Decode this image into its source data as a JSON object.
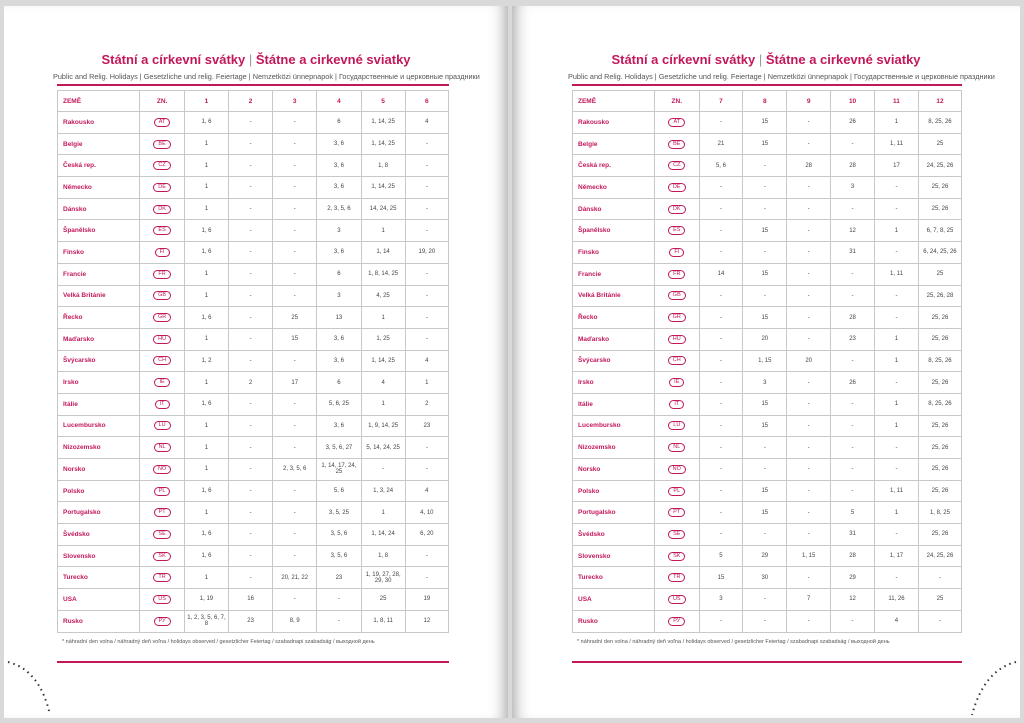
{
  "pages": [
    {
      "title": [
        "Státní a církevní svátky",
        "Štátne a cirkevné sviatky"
      ],
      "subtitle": "Public and Relig. Holidays | Gesetzliche und relig. Feiertage | Nemzetközi ünnepnapok | Государственные и церковные праздники",
      "header": [
        "ZEMĚ",
        "ZN.",
        "1",
        "2",
        "3",
        "4",
        "5",
        "6"
      ],
      "rows": [
        [
          "Rakousko",
          "AT",
          "1, 6",
          "-",
          "-",
          "6",
          "1, 14, 25",
          "4"
        ],
        [
          "Belgie",
          "BE",
          "1",
          "-",
          "-",
          "3, 6",
          "1, 14, 25",
          "-"
        ],
        [
          "Česká rep.",
          "CZ",
          "1",
          "-",
          "-",
          "3, 6",
          "1, 8",
          "-"
        ],
        [
          "Německo",
          "DE",
          "1",
          "-",
          "-",
          "3, 6",
          "1, 14, 25",
          "-"
        ],
        [
          "Dánsko",
          "DK",
          "1",
          "-",
          "-",
          "2, 3, 5, 6",
          "14, 24, 25",
          "-"
        ],
        [
          "Španělsko",
          "ES",
          "1, 6",
          "-",
          "-",
          "3",
          "1",
          "-"
        ],
        [
          "Finsko",
          "FI",
          "1, 6",
          "-",
          "-",
          "3, 6",
          "1, 14",
          "19, 20"
        ],
        [
          "Francie",
          "FR",
          "1",
          "-",
          "-",
          "6",
          "1, 8, 14, 25",
          "-"
        ],
        [
          "Velká Británie",
          "GB",
          "1",
          "-",
          "-",
          "3",
          "4, 25",
          "-"
        ],
        [
          "Řecko",
          "GR",
          "1, 6",
          "-",
          "25",
          "13",
          "1",
          "-"
        ],
        [
          "Maďarsko",
          "HU",
          "1",
          "-",
          "15",
          "3, 6",
          "1, 25",
          "-"
        ],
        [
          "Švýcarsko",
          "CH",
          "1, 2",
          "-",
          "-",
          "3, 6",
          "1, 14, 25",
          "4"
        ],
        [
          "Irsko",
          "IE",
          "1",
          "2",
          "17",
          "6",
          "4",
          "1"
        ],
        [
          "Itálie",
          "IT",
          "1, 6",
          "-",
          "-",
          "5, 6, 25",
          "1",
          "2"
        ],
        [
          "Lucembursko",
          "LU",
          "1",
          "-",
          "-",
          "3, 6",
          "1, 9, 14, 25",
          "23"
        ],
        [
          "Nizozemsko",
          "NL",
          "1",
          "-",
          "-",
          "3, 5, 6, 27",
          "5, 14, 24, 25",
          "-"
        ],
        [
          "Norsko",
          "NO",
          "1",
          "-",
          "2, 3, 5, 6",
          "1, 14, 17, 24, 25",
          "-",
          "-"
        ],
        [
          "Polsko",
          "PL",
          "1, 6",
          "-",
          "-",
          "5, 6",
          "1, 3, 24",
          "4"
        ],
        [
          "Portugalsko",
          "PT",
          "1",
          "-",
          "-",
          "3, 5, 25",
          "1",
          "4, 10"
        ],
        [
          "Švédsko",
          "SE",
          "1, 6",
          "-",
          "-",
          "3, 5, 6",
          "1, 14, 24",
          "6, 20"
        ],
        [
          "Slovensko",
          "SK",
          "1, 6",
          "-",
          "-",
          "3, 5, 6",
          "1, 8",
          "-"
        ],
        [
          "Turecko",
          "TR",
          "1",
          "-",
          "20, 21, 22",
          "23",
          "1, 19, 27, 28, 29, 30",
          "-"
        ],
        [
          "USA",
          "US",
          "1, 19",
          "16",
          "-",
          "-",
          "25",
          "19"
        ],
        [
          "Rusko",
          "РУ",
          "1, 2, 3, 5, 6, 7, 8",
          "23",
          "8, 9",
          "-",
          "1, 8, 11",
          "12"
        ]
      ],
      "footnote": "* náhradní den volna / náhradný deň voľna / holidays observed / gesetzlicher Feiertag / szabadnapi szabadság / выходной день"
    },
    {
      "title": [
        "Státní a církevní svátky",
        "Štátne a cirkevné sviatky"
      ],
      "subtitle": "Public and Relig. Holidays | Gesetzliche und relig. Feiertage | Nemzetközi ünnepnapok | Государственные и церковные праздники",
      "header": [
        "ZEMĚ",
        "ZN.",
        "7",
        "8",
        "9",
        "10",
        "11",
        "12"
      ],
      "rows": [
        [
          "Rakousko",
          "AT",
          "-",
          "15",
          "-",
          "26",
          "1",
          "8, 25, 26"
        ],
        [
          "Belgie",
          "BE",
          "21",
          "15",
          "-",
          "-",
          "1, 11",
          "25"
        ],
        [
          "Česká rep.",
          "CZ",
          "5, 6",
          "-",
          "28",
          "28",
          "17",
          "24, 25, 26"
        ],
        [
          "Německo",
          "DE",
          "-",
          "-",
          "-",
          "3",
          "-",
          "25, 26"
        ],
        [
          "Dánsko",
          "DK",
          "-",
          "-",
          "-",
          "-",
          "-",
          "25, 26"
        ],
        [
          "Španělsko",
          "ES",
          "-",
          "15",
          "-",
          "12",
          "1",
          "6, 7, 8, 25"
        ],
        [
          "Finsko",
          "FI",
          "-",
          "-",
          "-",
          "31",
          "-",
          "6, 24, 25, 26"
        ],
        [
          "Francie",
          "FR",
          "14",
          "15",
          "-",
          "-",
          "1, 11",
          "25"
        ],
        [
          "Velká Británie",
          "GB",
          "-",
          "-",
          "-",
          "-",
          "-",
          "25, 26, 28"
        ],
        [
          "Řecko",
          "GR",
          "-",
          "15",
          "-",
          "28",
          "-",
          "25, 26"
        ],
        [
          "Maďarsko",
          "HU",
          "-",
          "20",
          "-",
          "23",
          "1",
          "25, 26"
        ],
        [
          "Švýcarsko",
          "CH",
          "-",
          "1, 15",
          "20",
          "-",
          "1",
          "8, 25, 26"
        ],
        [
          "Irsko",
          "IE",
          "-",
          "3",
          "-",
          "26",
          "-",
          "25, 26"
        ],
        [
          "Itálie",
          "IT",
          "-",
          "15",
          "-",
          "-",
          "1",
          "8, 25, 26"
        ],
        [
          "Lucembursko",
          "LU",
          "-",
          "15",
          "-",
          "-",
          "1",
          "25, 26"
        ],
        [
          "Nizozemsko",
          "NL",
          "-",
          "-",
          "-",
          "-",
          "-",
          "25, 26"
        ],
        [
          "Norsko",
          "NO",
          "-",
          "-",
          "-",
          "-",
          "-",
          "25, 26"
        ],
        [
          "Polsko",
          "PL",
          "-",
          "15",
          "-",
          "-",
          "1, 11",
          "25, 26"
        ],
        [
          "Portugalsko",
          "PT",
          "-",
          "15",
          "-",
          "5",
          "1",
          "1, 8, 25"
        ],
        [
          "Švédsko",
          "SE",
          "-",
          "-",
          "-",
          "31",
          "-",
          "25, 26"
        ],
        [
          "Slovensko",
          "SK",
          "5",
          "29",
          "1, 15",
          "28",
          "1, 17",
          "24, 25, 26"
        ],
        [
          "Turecko",
          "TR",
          "15",
          "30",
          "-",
          "29",
          "-",
          "-"
        ],
        [
          "USA",
          "US",
          "3",
          "-",
          "7",
          "12",
          "11, 26",
          "25"
        ],
        [
          "Rusko",
          "РУ",
          "-",
          "-",
          "-",
          "-",
          "4",
          "-"
        ]
      ],
      "footnote": "* náhradní den volna / náhradný deň voľna / holidays observed / gesetzlicher Feiertag / szabadnapi szabadság / выходной день"
    }
  ]
}
